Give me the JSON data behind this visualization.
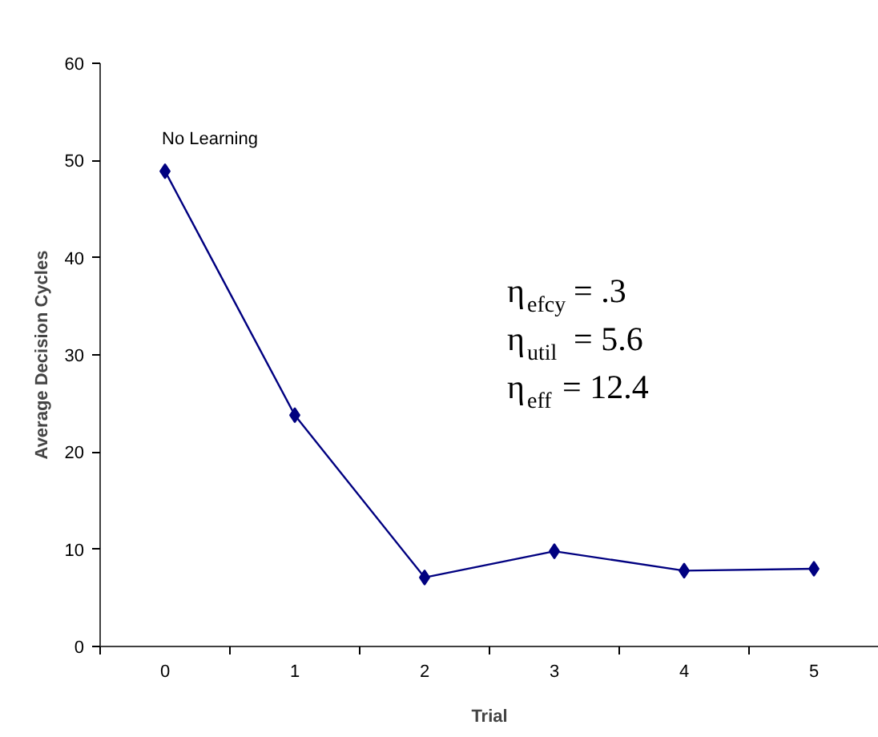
{
  "chart_data": {
    "type": "line",
    "xlabel": "Trial",
    "ylabel": "Average Decision Cycles",
    "categories": [
      "0",
      "1",
      "2",
      "3",
      "4",
      "5"
    ],
    "series": [
      {
        "color": "#000080",
        "values": [
          48.9,
          23.8,
          7.1,
          9.8,
          7.8,
          8.0
        ]
      }
    ],
    "ylim": [
      0,
      60
    ],
    "yticks": [
      0,
      10,
      20,
      30,
      40,
      50,
      60
    ],
    "marker": "diamond",
    "line_style": "solid",
    "grid": false,
    "annotations": [
      {
        "text": "No Learning",
        "x": "0",
        "y": 48.9
      },
      "η$_{efcy}$ = .3",
      "η$_{util}$  =  5.6",
      "η$_{eff}$   =  12.4"
    ]
  }
}
